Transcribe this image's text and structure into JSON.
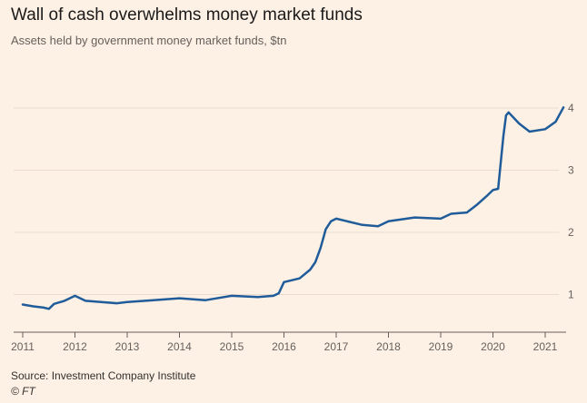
{
  "header": {
    "title": "Wall of cash overwhelms money market funds",
    "subtitle": "Assets held by government money market funds, $tn"
  },
  "footer": {
    "source": "Source: Investment Company Institute",
    "credit": "© FT"
  },
  "colors": {
    "background": "#fdf1e5",
    "line": "#1f5c99",
    "grid": "#e9dccf",
    "axis": "#66605c"
  },
  "chart_data": {
    "type": "line",
    "title": "Wall of cash overwhelms money market funds",
    "subtitle": "Assets held by government money market funds, $tn",
    "xlabel": "",
    "ylabel": "",
    "xlim": [
      2011,
      2021.4
    ],
    "ylim": [
      0.5,
      4.2
    ],
    "grid": true,
    "y_axis_side": "right",
    "x_ticks": [
      "2011",
      "2012",
      "2013",
      "2014",
      "2015",
      "2016",
      "2017",
      "2018",
      "2019",
      "2020",
      "2021"
    ],
    "y_ticks": [
      "1",
      "2",
      "3",
      "4"
    ],
    "series": [
      {
        "x": [
          2011.0,
          2011.2,
          2011.4,
          2011.5,
          2011.6,
          2011.8,
          2012.0,
          2012.2,
          2012.5,
          2012.8,
          2013.0,
          2013.5,
          2014.0,
          2014.5,
          2015.0,
          2015.5,
          2015.8,
          2015.9,
          2016.0,
          2016.3,
          2016.5,
          2016.6,
          2016.7,
          2016.8,
          2016.9,
          2017.0,
          2017.5,
          2017.8,
          2018.0,
          2018.5,
          2019.0,
          2019.2,
          2019.5,
          2019.7,
          2019.9,
          2020.0,
          2020.1,
          2020.2,
          2020.25,
          2020.3,
          2020.5,
          2020.7,
          2021.0,
          2021.2,
          2021.35
        ],
        "values": [
          0.84,
          0.81,
          0.79,
          0.77,
          0.85,
          0.9,
          0.98,
          0.9,
          0.88,
          0.86,
          0.88,
          0.91,
          0.94,
          0.91,
          0.98,
          0.96,
          0.98,
          1.02,
          1.2,
          1.26,
          1.4,
          1.52,
          1.75,
          2.05,
          2.18,
          2.22,
          2.12,
          2.1,
          2.18,
          2.24,
          2.22,
          2.3,
          2.32,
          2.45,
          2.6,
          2.68,
          2.7,
          3.55,
          3.88,
          3.93,
          3.75,
          3.62,
          3.66,
          3.78,
          4.01
        ]
      }
    ]
  }
}
